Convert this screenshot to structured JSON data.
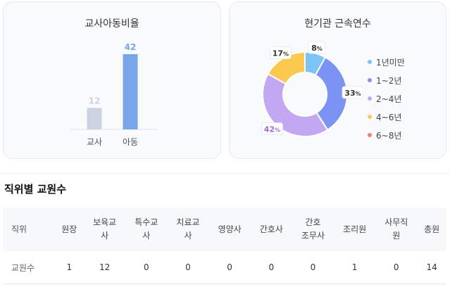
{
  "left_chart": {
    "title": "교사아동비율",
    "chart_data": {
      "type": "bar",
      "categories": [
        "교사",
        "아동"
      ],
      "values": [
        12,
        42
      ],
      "colors": [
        "#ccd3e0",
        "#78a7e8"
      ],
      "label_colors": [
        "#ccd3e0",
        "#78a7e8"
      ]
    }
  },
  "right_chart": {
    "title": "현기관 근속연수",
    "chart_data": {
      "type": "pie",
      "labels": [
        "1년미만",
        "1~2년",
        "2~4년",
        "4~6년",
        "6~8년"
      ],
      "values": [
        8,
        33,
        42,
        17,
        0
      ],
      "value_labels": [
        "8",
        "33",
        "42",
        "17",
        ""
      ],
      "unit": "%",
      "colors": [
        "#7cc4f8",
        "#7b93f3",
        "#c2a8f3",
        "#fbc94f",
        "#f47e7e"
      ]
    }
  },
  "table": {
    "section_title": "직위별 교원수",
    "headers": [
      "직위",
      "원장",
      "보육교\n사",
      "특수교\n사",
      "치료교\n사",
      "영양사",
      "간호사",
      "간호\n조무사",
      "조리원",
      "사무직\n원",
      "총원"
    ],
    "row_label": "교원수",
    "values": [
      "1",
      "12",
      "0",
      "0",
      "0",
      "0",
      "0",
      "1",
      "0",
      "14"
    ]
  }
}
